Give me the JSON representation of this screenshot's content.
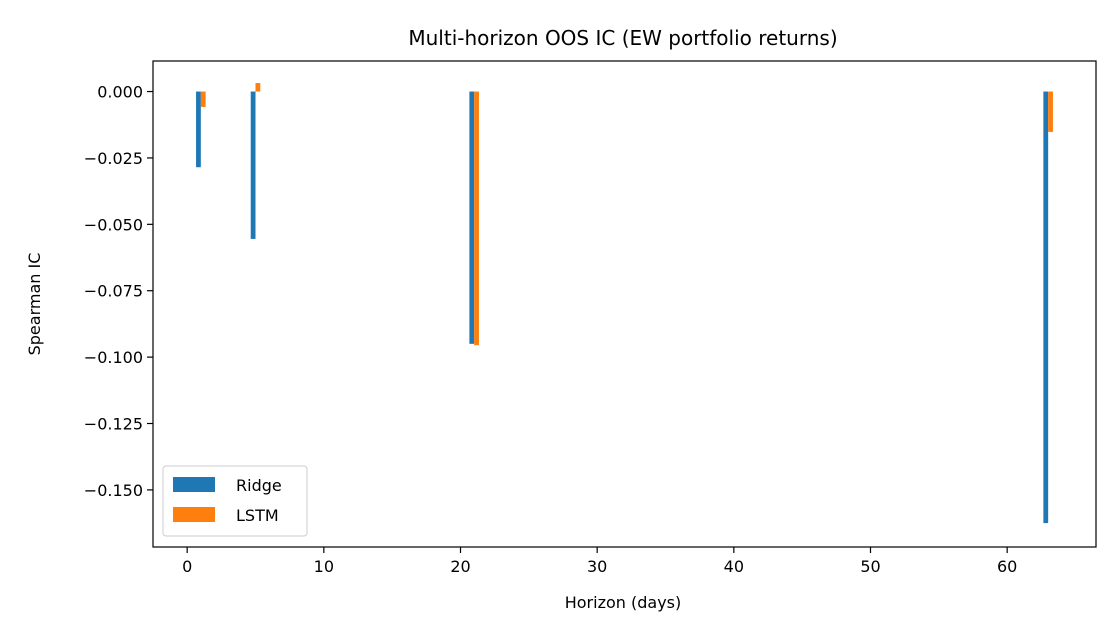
{
  "chart_data": {
    "type": "bar",
    "title": "Multi-horizon OOS IC (EW portfolio returns)",
    "xlabel": "Horizon (days)",
    "ylabel": "Spearman IC",
    "x": [
      1,
      5,
      21,
      63
    ],
    "series": [
      {
        "name": "Ridge",
        "color": "#1f77b4",
        "values": [
          -0.0285,
          -0.0555,
          -0.095,
          -0.1625
        ]
      },
      {
        "name": "LSTM",
        "color": "#ff7f0e",
        "values": [
          -0.0058,
          0.0032,
          -0.0955,
          -0.0152
        ]
      }
    ],
    "xlim": [
      -2.5,
      66.5
    ],
    "ylim": [
      -0.1715,
      0.0115
    ],
    "xticks": [
      0,
      10,
      20,
      30,
      40,
      50,
      60
    ],
    "xtick_labels": [
      "0",
      "10",
      "20",
      "30",
      "40",
      "50",
      "60"
    ],
    "yticks": [
      0.0,
      -0.025,
      -0.05,
      -0.075,
      -0.1,
      -0.125,
      -0.15
    ],
    "ytick_labels": [
      "0.000",
      "−0.025",
      "−0.050",
      "−0.075",
      "−0.100",
      "−0.125",
      "−0.150"
    ],
    "grid": false,
    "legend": {
      "placement": "lower-left",
      "entries": [
        "Ridge",
        "LSTM"
      ]
    }
  }
}
